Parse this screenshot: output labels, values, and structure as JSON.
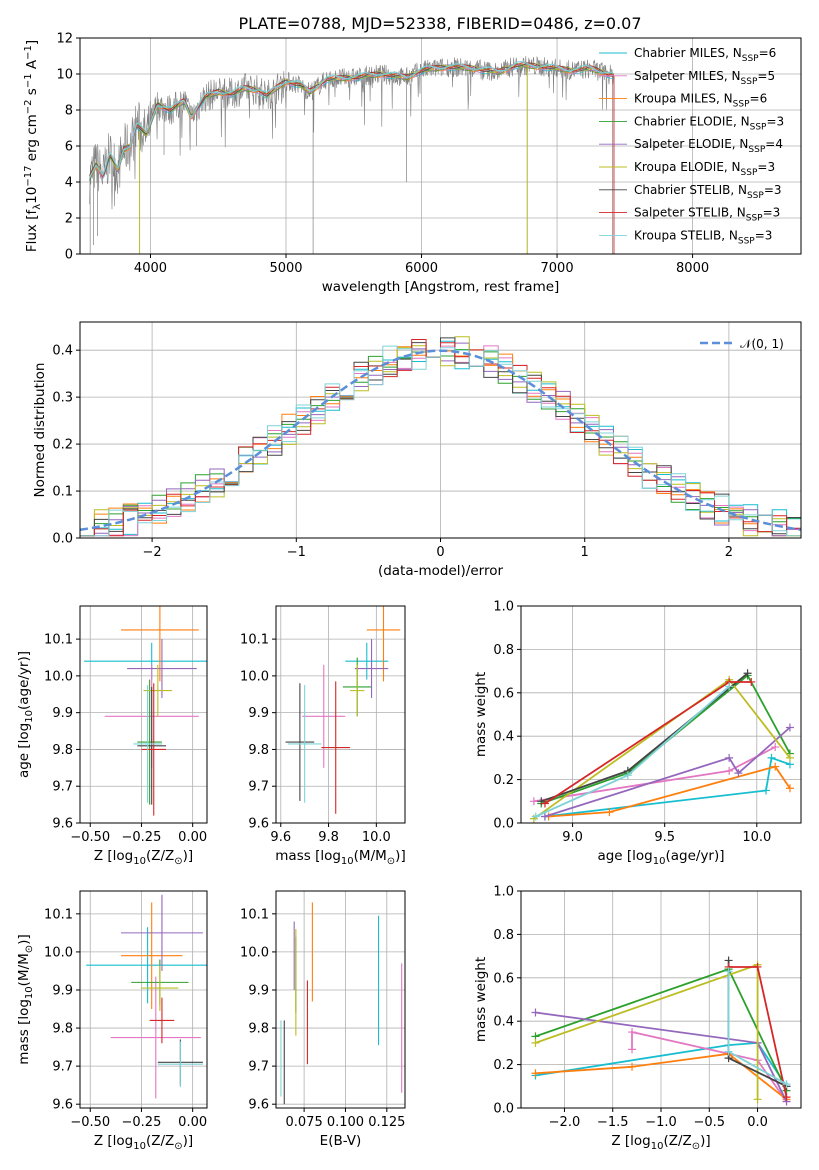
{
  "title": "PLATE=0788, MJD=52338, FIBERID=0486, z=0.07",
  "colors": {
    "grid": "#b0b0b0",
    "gaussian": "#5b8fd9",
    "series": [
      "#17becf",
      "#e377c2",
      "#ff7f0e",
      "#2ca02c",
      "#9467bd",
      "#bcbd22",
      "#444444",
      "#d62728",
      "#7fd3d8"
    ]
  },
  "legend": {
    "spectrum": [
      {
        "prefix": "Chabrier MILES, N",
        "sub": "SSP",
        "suffix": "=6"
      },
      {
        "prefix": "Salpeter MILES, N",
        "sub": "SSP",
        "suffix": "=5"
      },
      {
        "prefix": "Kroupa MILES, N",
        "sub": "SSP",
        "suffix": "=6"
      },
      {
        "prefix": "Chabrier ELODIE, N",
        "sub": "SSP",
        "suffix": "=3"
      },
      {
        "prefix": "Salpeter ELODIE, N",
        "sub": "SSP",
        "suffix": "=4"
      },
      {
        "prefix": "Kroupa ELODIE, N",
        "sub": "SSP",
        "suffix": "=3"
      },
      {
        "prefix": "Chabrier STELIB, N",
        "sub": "SSP",
        "suffix": "=3"
      },
      {
        "prefix": "Salpeter STELIB, N",
        "sub": "SSP",
        "suffix": "=3"
      },
      {
        "prefix": "Kroupa STELIB, N",
        "sub": "SSP",
        "suffix": "=3"
      }
    ],
    "histogram": "𝒩(0, 1)"
  },
  "chart_data": [
    {
      "id": "spectrum",
      "type": "line",
      "xlabel": "wavelength [Angstrom, rest frame]",
      "ylabel": {
        "pre": "Flux [f",
        "sub1": "λ",
        "mid": "10",
        "sup1": "−17",
        "post1": " erg cm",
        "sup2": "−2",
        "post2": " s",
        "sup3": "−1",
        "post3": " A",
        "sup4": "−1",
        "post4": "]"
      },
      "xlim": [
        3480,
        8800
      ],
      "ylim": [
        0,
        12
      ],
      "xticks": [
        4000,
        5000,
        6000,
        7000,
        8000
      ],
      "yticks": [
        0,
        2,
        4,
        6,
        8,
        10,
        12
      ],
      "continuum": [
        [
          3550,
          4.2
        ],
        [
          3600,
          5.0
        ],
        [
          3650,
          4.3
        ],
        [
          3700,
          5.5
        ],
        [
          3760,
          4.6
        ],
        [
          3800,
          5.8
        ],
        [
          3850,
          6.0
        ],
        [
          3900,
          7.2
        ],
        [
          3970,
          6.6
        ],
        [
          4050,
          8.3
        ],
        [
          4150,
          8.0
        ],
        [
          4250,
          8.5
        ],
        [
          4300,
          7.6
        ],
        [
          4400,
          8.7
        ],
        [
          4500,
          9.0
        ],
        [
          4600,
          8.9
        ],
        [
          4700,
          9.2
        ],
        [
          4800,
          9.1
        ],
        [
          4860,
          8.8
        ],
        [
          5000,
          9.6
        ],
        [
          5100,
          9.4
        ],
        [
          5175,
          9.0
        ],
        [
          5300,
          9.7
        ],
        [
          5500,
          9.8
        ],
        [
          5700,
          10.0
        ],
        [
          5890,
          9.8
        ],
        [
          6000,
          10.2
        ],
        [
          6200,
          10.4
        ],
        [
          6400,
          10.3
        ],
        [
          6563,
          10.1
        ],
        [
          6700,
          10.5
        ],
        [
          6900,
          10.4
        ],
        [
          7100,
          10.2
        ],
        [
          7250,
          10.3
        ],
        [
          7420,
          9.9
        ]
      ]
    },
    {
      "id": "residual-histogram",
      "type": "histogram",
      "xlabel": "(data-model)/error",
      "ylabel": "Normed distribution",
      "xlim": [
        -2.5,
        2.5
      ],
      "ylim": [
        0,
        0.46
      ],
      "xticks": [
        -2,
        -1,
        0,
        1,
        2
      ],
      "yticks": [
        0.0,
        0.1,
        0.2,
        0.3,
        0.4
      ]
    },
    {
      "id": "age-vs-z",
      "type": "scatter",
      "xlabel": {
        "pre": "Z [log",
        "sub": "10",
        "mid": "(Z/Z",
        "sub2": "⊙",
        "post": ")]"
      },
      "ylabel": {
        "pre": "age  [log",
        "sub": "10",
        "post": "(age/yr)]"
      },
      "xlim": [
        -0.55,
        0.07
      ],
      "ylim": [
        9.6,
        10.19
      ],
      "xticks": [
        -0.5,
        -0.25,
        0.0
      ],
      "xticklabels": [
        "−0.50",
        "−0.25",
        "0.00"
      ],
      "yticks": [
        9.6,
        9.7,
        9.8,
        9.9,
        10.0,
        10.1
      ],
      "points": [
        {
          "x": -0.2,
          "xerr": 0.33,
          "y": 10.04,
          "yerr": 0.05,
          "c": 0
        },
        {
          "x": -0.2,
          "xerr": 0.23,
          "y": 9.89,
          "yerr": 0.14,
          "c": 1
        },
        {
          "x": -0.16,
          "xerr": 0.19,
          "y": 10.125,
          "yerr": 0.14,
          "c": 2
        },
        {
          "x": -0.21,
          "xerr": 0.06,
          "y": 9.82,
          "yerr": 0.17,
          "c": 3
        },
        {
          "x": -0.15,
          "xerr": 0.17,
          "y": 10.02,
          "yerr": 0.08,
          "c": 4
        },
        {
          "x": -0.17,
          "xerr": 0.07,
          "y": 9.96,
          "yerr": 0.07,
          "c": 5
        },
        {
          "x": -0.2,
          "xerr": 0.07,
          "y": 9.81,
          "yerr": 0.16,
          "c": 6
        },
        {
          "x": -0.19,
          "xerr": 0.06,
          "y": 9.8,
          "yerr": 0.18,
          "c": 7
        },
        {
          "x": -0.22,
          "xerr": 0.07,
          "y": 9.815,
          "yerr": 0.16,
          "c": 8
        }
      ]
    },
    {
      "id": "age-vs-mass",
      "type": "scatter",
      "xlabel": {
        "pre": "mass [log",
        "sub": "10",
        "mid": "(M/M",
        "sub2": "⊙",
        "post": ")]"
      },
      "ylabel": null,
      "xlim": [
        9.58,
        10.12
      ],
      "ylim": [
        9.6,
        10.19
      ],
      "xticks": [
        9.6,
        9.8,
        10.0
      ],
      "xticklabels": [
        "9.6",
        "9.8",
        "10.0"
      ],
      "yticks": [
        9.6,
        9.7,
        9.8,
        9.9,
        10.0,
        10.1
      ],
      "points": [
        {
          "x": 9.96,
          "xerr": 0.09,
          "y": 10.04,
          "yerr": 0.05,
          "c": 0
        },
        {
          "x": 9.78,
          "xerr": 0.09,
          "y": 9.89,
          "yerr": 0.14,
          "c": 1
        },
        {
          "x": 10.03,
          "xerr": 0.07,
          "y": 10.125,
          "yerr": 0.14,
          "c": 2
        },
        {
          "x": 9.92,
          "xerr": 0.06,
          "y": 9.97,
          "yerr": 0.08,
          "c": 3
        },
        {
          "x": 9.98,
          "xerr": 0.07,
          "y": 10.02,
          "yerr": 0.08,
          "c": 4
        },
        {
          "x": 9.92,
          "xerr": 0.03,
          "y": 9.96,
          "yerr": 0.07,
          "c": 5
        },
        {
          "x": 9.68,
          "xerr": 0.06,
          "y": 9.82,
          "yerr": 0.16,
          "c": 6
        },
        {
          "x": 9.83,
          "xerr": 0.06,
          "y": 9.805,
          "yerr": 0.18,
          "c": 7
        },
        {
          "x": 9.7,
          "xerr": 0.07,
          "y": 9.815,
          "yerr": 0.16,
          "c": 8
        }
      ]
    },
    {
      "id": "weight-vs-age",
      "type": "line",
      "xlabel": {
        "pre": "age  [log",
        "sub": "10",
        "post": "(age/yr)]"
      },
      "ylabel": "mass weight",
      "xlim": [
        8.72,
        10.24
      ],
      "ylim": [
        0,
        1.0
      ],
      "xticks": [
        9.0,
        9.5,
        10.0
      ],
      "xticklabels": [
        "9.0",
        "9.5",
        "10.0"
      ],
      "yticks": [
        0.0,
        0.2,
        0.4,
        0.6,
        0.8,
        1.0
      ],
      "series": [
        {
          "c": 0,
          "x": [
            8.85,
            10.05,
            10.08,
            10.18
          ],
          "y": [
            0.03,
            0.15,
            0.3,
            0.27
          ]
        },
        {
          "c": 1,
          "x": [
            8.79,
            9.85,
            10.1
          ],
          "y": [
            0.1,
            0.24,
            0.35
          ]
        },
        {
          "c": 2,
          "x": [
            8.87,
            9.2,
            10.1,
            10.18
          ],
          "y": [
            0.03,
            0.05,
            0.26,
            0.16
          ]
        },
        {
          "c": 3,
          "x": [
            8.83,
            9.3,
            9.95,
            10.18
          ],
          "y": [
            0.09,
            0.23,
            0.68,
            0.32
          ]
        },
        {
          "c": 4,
          "x": [
            8.85,
            9.85,
            9.9,
            10.18
          ],
          "y": [
            0.03,
            0.3,
            0.23,
            0.44
          ]
        },
        {
          "c": 5,
          "x": [
            8.79,
            9.85,
            10.18
          ],
          "y": [
            0.02,
            0.66,
            0.3
          ]
        },
        {
          "c": 6,
          "x": [
            8.83,
            9.3,
            9.95
          ],
          "y": [
            0.1,
            0.24,
            0.69
          ]
        },
        {
          "c": 7,
          "x": [
            8.85,
            9.85,
            9.97
          ],
          "y": [
            0.09,
            0.65,
            0.65
          ]
        },
        {
          "c": 8,
          "x": [
            8.8,
            9.3,
            9.85
          ],
          "y": [
            0.03,
            0.22,
            0.63
          ]
        }
      ]
    },
    {
      "id": "mass-vs-z",
      "type": "scatter",
      "xlabel": {
        "pre": "Z [log",
        "sub": "10",
        "mid": "(Z/Z",
        "sub2": "⊙",
        "post": ")]"
      },
      "ylabel": {
        "pre": "mass [log",
        "sub": "10",
        "mid": "(M/M",
        "sub2": "⊙",
        "post": ")]"
      },
      "xlim": [
        -0.55,
        0.07
      ],
      "ylim": [
        9.59,
        10.16
      ],
      "xticks": [
        -0.5,
        -0.25,
        0.0
      ],
      "xticklabels": [
        "−0.50",
        "−0.25",
        "0.00"
      ],
      "yticks": [
        9.6,
        9.7,
        9.8,
        9.9,
        10.0,
        10.1
      ],
      "points": [
        {
          "x": -0.22,
          "xerr": 0.3,
          "y": 9.965,
          "yerr": 0.1,
          "c": 0
        },
        {
          "x": -0.18,
          "xerr": 0.22,
          "y": 9.775,
          "yerr": 0.16,
          "c": 1
        },
        {
          "x": -0.2,
          "xerr": 0.15,
          "y": 9.99,
          "yerr": 0.14,
          "c": 2
        },
        {
          "x": -0.16,
          "xerr": 0.14,
          "y": 9.92,
          "yerr": 0.06,
          "c": 3
        },
        {
          "x": -0.15,
          "xerr": 0.2,
          "y": 10.05,
          "yerr": 0.1,
          "c": 4
        },
        {
          "x": -0.16,
          "xerr": 0.09,
          "y": 9.905,
          "yerr": 0.06,
          "c": 5
        },
        {
          "x": -0.06,
          "xerr": 0.11,
          "y": 9.71,
          "yerr": 0.06,
          "c": 6
        },
        {
          "x": -0.15,
          "xerr": 0.06,
          "y": 9.82,
          "yerr": 0.06,
          "c": 7
        },
        {
          "x": -0.06,
          "xerr": 0.11,
          "y": 9.705,
          "yerr": 0.06,
          "c": 8
        }
      ]
    },
    {
      "id": "mass-vs-ebv",
      "type": "scatter",
      "xlabel": "E(B-V)",
      "ylabel": null,
      "xlim": [
        0.058,
        0.136
      ],
      "ylim": [
        9.59,
        10.16
      ],
      "xticks": [
        0.075,
        0.1,
        0.125
      ],
      "xticklabels": [
        "0.075",
        "0.100",
        "0.125"
      ],
      "yticks": [
        9.6,
        9.7,
        9.8,
        9.9,
        10.0,
        10.1
      ],
      "points": [
        {
          "x": 0.12,
          "xerr": 0,
          "y": 9.925,
          "yerr": 0.17,
          "c": 0
        },
        {
          "x": 0.134,
          "xerr": 0,
          "y": 9.8,
          "yerr": 0.17,
          "c": 1
        },
        {
          "x": 0.08,
          "xerr": 0,
          "y": 10.0,
          "yerr": 0.13,
          "c": 2
        },
        {
          "x": 0.07,
          "xerr": 0,
          "y": 9.94,
          "yerr": 0.1,
          "c": 3
        },
        {
          "x": 0.069,
          "xerr": 0,
          "y": 9.99,
          "yerr": 0.09,
          "c": 4
        },
        {
          "x": 0.07,
          "xerr": 0,
          "y": 9.92,
          "yerr": 0.14,
          "c": 5
        },
        {
          "x": 0.063,
          "xerr": 0,
          "y": 9.71,
          "yerr": 0.11,
          "c": 6
        },
        {
          "x": 0.077,
          "xerr": 0,
          "y": 9.815,
          "yerr": 0.11,
          "c": 7
        },
        {
          "x": 0.061,
          "xerr": 0,
          "y": 9.72,
          "yerr": 0.1,
          "c": 8
        }
      ]
    },
    {
      "id": "weight-vs-z",
      "type": "line",
      "xlabel": {
        "pre": "Z [log",
        "sub": "10",
        "mid": "(Z/Z",
        "sub2": "⊙",
        "post": ")]"
      },
      "ylabel": "mass weight",
      "xlim": [
        -2.45,
        0.45
      ],
      "ylim": [
        0,
        1.0
      ],
      "xticks": [
        -2.0,
        -1.5,
        -1.0,
        -0.5,
        0.0
      ],
      "xticklabels": [
        "−2.0",
        "−1.5",
        "−1.0",
        "−0.5",
        "0.0"
      ],
      "yticks": [
        0.0,
        0.2,
        0.4,
        0.6,
        0.8,
        1.0
      ],
      "series": [
        {
          "c": 0,
          "x": [
            -2.3,
            -0.3,
            0.0,
            0.3
          ],
          "y": [
            0.15,
            0.29,
            0.3,
            0.1
          ]
        },
        {
          "c": 1,
          "x": [
            -1.3,
            -1.3,
            0.0,
            0.3
          ],
          "y": [
            0.27,
            0.35,
            0.22,
            0.03
          ]
        },
        {
          "c": 2,
          "x": [
            -2.3,
            -1.3,
            -0.3,
            0.3
          ],
          "y": [
            0.16,
            0.19,
            0.25,
            0.04
          ]
        },
        {
          "c": 3,
          "x": [
            -2.3,
            -0.3,
            0.3
          ],
          "y": [
            0.33,
            0.64,
            0.08
          ]
        },
        {
          "c": 4,
          "x": [
            -2.3,
            0.0,
            0.3
          ],
          "y": [
            0.44,
            0.3,
            0.03
          ]
        },
        {
          "c": 5,
          "x": [
            -2.3,
            0.0,
            0.0
          ],
          "y": [
            0.3,
            0.66,
            0.04
          ]
        },
        {
          "c": 6,
          "x": [
            -0.3,
            -0.3,
            0.3
          ],
          "y": [
            0.68,
            0.23,
            0.1
          ]
        },
        {
          "c": 7,
          "x": [
            -0.3,
            0.0,
            0.3
          ],
          "y": [
            0.65,
            0.65,
            0.05
          ]
        },
        {
          "c": 8,
          "x": [
            -0.3,
            -0.3,
            0.3
          ],
          "y": [
            0.63,
            0.26,
            0.11
          ]
        }
      ]
    }
  ]
}
